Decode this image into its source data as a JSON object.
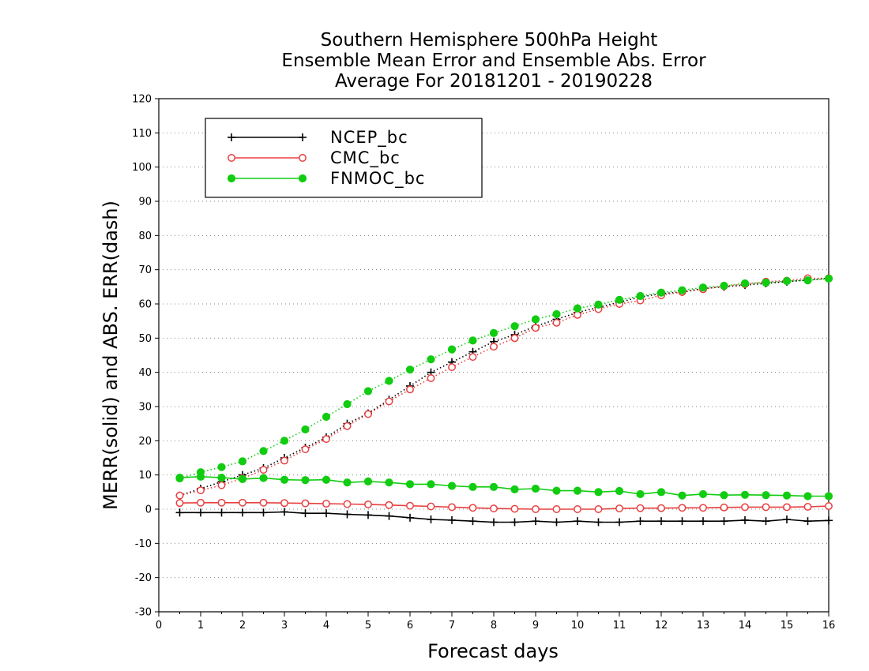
{
  "chart_data": {
    "type": "line",
    "title": [
      "Southern Hemisphere 500hPa Height",
      "Ensemble Mean Error and Ensemble Abs. Error",
      "Average For 20181201 - 20190228"
    ],
    "xlabel": "Forecast days",
    "ylabel": "MERR(solid) and ABS. ERR(dash)",
    "xlim": [
      0,
      16
    ],
    "ylim": [
      -30,
      120
    ],
    "x_ticks": [
      0,
      1,
      2,
      3,
      4,
      5,
      6,
      7,
      8,
      9,
      10,
      11,
      12,
      13,
      14,
      15,
      16
    ],
    "y_ticks": [
      -30,
      -20,
      -10,
      0,
      10,
      20,
      30,
      40,
      50,
      60,
      70,
      80,
      90,
      100,
      110,
      120
    ],
    "grid": "horizontal dotted",
    "legend_position": "top-left",
    "x": [
      0.5,
      1,
      1.5,
      2,
      2.5,
      3,
      3.5,
      4,
      4.5,
      5,
      5.5,
      6,
      6.5,
      7,
      7.5,
      8,
      8.5,
      9,
      9.5,
      10,
      10.5,
      11,
      11.5,
      12,
      12.5,
      13,
      13.5,
      14,
      14.5,
      15,
      15.5,
      16
    ],
    "series": [
      {
        "name": "NCEP_bc",
        "color": "#000000",
        "marker": "plus",
        "merr": [
          -1,
          -1,
          -1,
          -1,
          -1,
          -0.8,
          -1.2,
          -1.2,
          -1.5,
          -1.7,
          -2,
          -2.5,
          -3,
          -3.2,
          -3.5,
          -3.8,
          -3.8,
          -3.5,
          -3.8,
          -3.5,
          -3.8,
          -3.8,
          -3.5,
          -3.5,
          -3.5,
          -3.5,
          -3.5,
          -3.2,
          -3.5,
          -3,
          -3.5,
          -3.3
        ],
        "abs_err": [
          4,
          6,
          8,
          10,
          12,
          15,
          18,
          21,
          25,
          28,
          32,
          36,
          40,
          43,
          46,
          49,
          51,
          53.5,
          55.5,
          57.5,
          59,
          60.5,
          62,
          63,
          63.5,
          64.5,
          65,
          65.5,
          66,
          66.5,
          67,
          67.5
        ]
      },
      {
        "name": "CMC_bc",
        "color": "#e84040",
        "marker": "open-circle",
        "merr": [
          1.8,
          1.9,
          1.9,
          1.9,
          1.9,
          1.8,
          1.7,
          1.6,
          1.5,
          1.4,
          1.2,
          1,
          0.8,
          0.6,
          0.4,
          0.2,
          0.1,
          0,
          0,
          0,
          0,
          0.2,
          0.3,
          0.3,
          0.4,
          0.4,
          0.5,
          0.6,
          0.6,
          0.6,
          0.7,
          0.9
        ],
        "abs_err": [
          4,
          5.5,
          7,
          9,
          11.5,
          14.2,
          17.5,
          20.5,
          24.3,
          27.8,
          31.5,
          35,
          38.3,
          41.5,
          44.5,
          47.5,
          50,
          53,
          54.5,
          56.8,
          58.5,
          60,
          61,
          62.5,
          63.5,
          64.3,
          65.2,
          65.8,
          66.5,
          66.8,
          67.5,
          67.5
        ]
      },
      {
        "name": "FNMOC_bc",
        "color": "#11cc11",
        "marker": "filled-circle",
        "merr": [
          9.2,
          9.5,
          9.2,
          8.8,
          9.1,
          8.6,
          8.5,
          8.6,
          7.8,
          8.1,
          7.8,
          7.3,
          7.3,
          6.8,
          6.5,
          6.5,
          5.8,
          6,
          5.4,
          5.4,
          5,
          5.3,
          4.4,
          5,
          4,
          4.4,
          4.1,
          4.2,
          4.1,
          4,
          3.8,
          3.8
        ],
        "abs_err": [
          9,
          10.8,
          12.3,
          14,
          17,
          20,
          23.3,
          27,
          30.7,
          34.5,
          37.5,
          40.8,
          43.8,
          46.7,
          49.3,
          51.5,
          53.5,
          55.5,
          57,
          58.7,
          59.8,
          61.2,
          62.3,
          63.3,
          64,
          64.8,
          65.3,
          66,
          66.2,
          66.7,
          66.9,
          67.4
        ]
      }
    ]
  }
}
